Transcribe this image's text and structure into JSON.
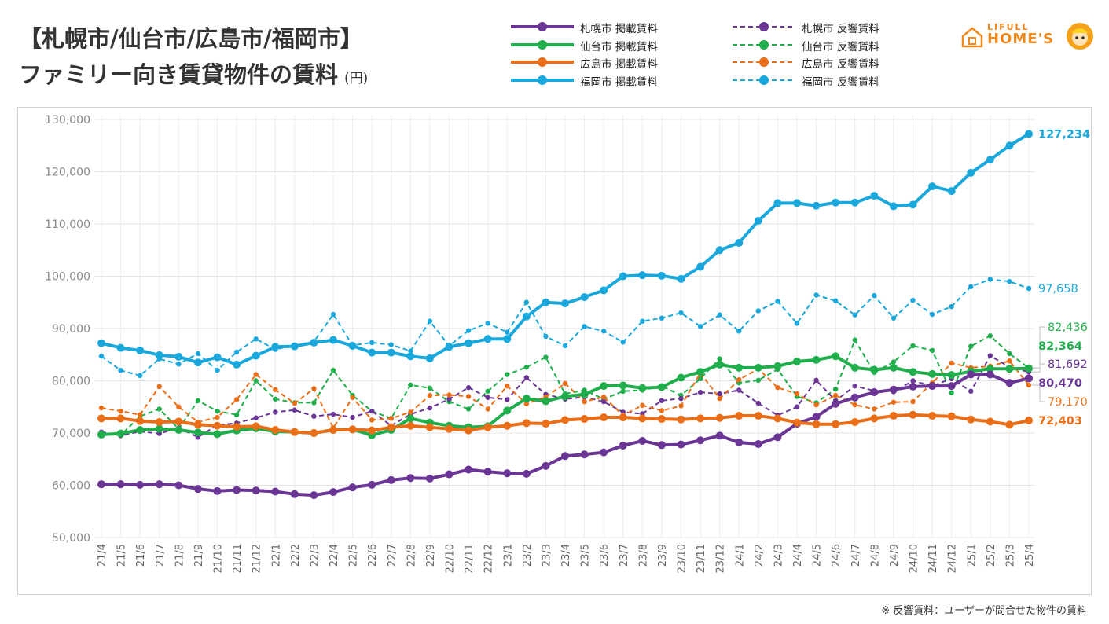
{
  "header": {
    "title_line1": "【札幌市/仙台市/広島市/福岡市】",
    "title_line2": "ファミリー向き賃貸物件の賃料",
    "unit": "(円)"
  },
  "logo": {
    "line1": "LIFULL",
    "line2": "HOME'S"
  },
  "footnote": "※ 反響賃料：ユーザーが問合せた物件の賃料",
  "chart_data": {
    "type": "line",
    "title": "【札幌市/仙台市/広島市/福岡市】ファミリー向き賃貸物件の賃料",
    "ylabel": "(円)",
    "ylim": [
      50000,
      130000
    ],
    "yticks": [
      50000,
      60000,
      70000,
      80000,
      90000,
      100000,
      110000,
      120000,
      130000
    ],
    "ytick_labels": [
      "50,000",
      "60,000",
      "70,000",
      "80,000",
      "90,000",
      "100,000",
      "110,000",
      "120,000",
      "130,000"
    ],
    "grid": true,
    "legend_position": "top",
    "x": [
      "21/4",
      "21/5",
      "21/6",
      "21/7",
      "21/8",
      "21/9",
      "21/10",
      "21/11",
      "21/12",
      "22/1",
      "22/2",
      "22/3",
      "22/4",
      "22/5",
      "22/6",
      "22/7",
      "22/8",
      "22/9",
      "22/10",
      "22/11",
      "22/12",
      "23/1",
      "23/2",
      "23/3",
      "23/4",
      "23/5",
      "23/6",
      "23/7",
      "23/8",
      "23/9",
      "23/10",
      "23/11",
      "23/12",
      "24/1",
      "24/2",
      "24/3",
      "24/4",
      "24/5",
      "24/6",
      "24/7",
      "24/8",
      "24/9",
      "24/10",
      "24/11",
      "24/12",
      "25/1",
      "25/2",
      "25/3",
      "25/4"
    ],
    "series": [
      {
        "name": "福岡市 反響賃料",
        "color": "#1aa8dc",
        "style": "dashed",
        "values": [
          84700,
          82000,
          81000,
          84200,
          83200,
          85200,
          82000,
          85500,
          88000,
          86000,
          86800,
          87500,
          92700,
          86800,
          87300,
          86900,
          85700,
          91400,
          86700,
          89600,
          91000,
          89300,
          95000,
          88500,
          86700,
          90400,
          89500,
          87400,
          91400,
          92000,
          93000,
          90400,
          92600,
          89500,
          93400,
          95200,
          91000,
          96400,
          95300,
          92600,
          96300,
          92000,
          95400,
          92700,
          94200,
          98000,
          99400,
          99000,
          97658
        ],
        "end_label": "97,658"
      },
      {
        "name": "仙台市 反響賃料",
        "color": "#1fae4b",
        "style": "dashed",
        "values": [
          69800,
          69600,
          73200,
          74600,
          70800,
          76200,
          74200,
          73500,
          80000,
          76500,
          75800,
          75800,
          82000,
          77200,
          74200,
          72800,
          79200,
          78600,
          76000,
          74600,
          78000,
          81200,
          82600,
          84500,
          77500,
          78200,
          76500,
          78000,
          78200,
          79000,
          77200,
          80400,
          84200,
          79600,
          80100,
          82200,
          77000,
          75800,
          78400,
          87800,
          81600,
          83600,
          86700,
          85800,
          77700,
          86600,
          88600,
          85200,
          82436
        ],
        "end_label": "82,436"
      },
      {
        "name": "札幌市 反響賃料",
        "color": "#6a3595",
        "style": "dashed",
        "values": [
          70200,
          69500,
          70300,
          69900,
          71000,
          69200,
          71500,
          71900,
          72900,
          74000,
          74400,
          73200,
          73600,
          73000,
          74200,
          71400,
          73600,
          74800,
          76500,
          78700,
          76800,
          76400,
          80600,
          77400,
          76500,
          76900,
          76000,
          74000,
          73700,
          76200,
          76600,
          77800,
          77500,
          78200,
          75700,
          73400,
          75000,
          80100,
          76200,
          79000,
          78100,
          77900,
          80000,
          79000,
          80400,
          78000,
          84800,
          82600,
          81692
        ],
        "end_label": "81,692"
      },
      {
        "name": "広島市 反響賃料",
        "color": "#ea6e17",
        "style": "dashed",
        "values": [
          74800,
          74200,
          73500,
          78900,
          75000,
          72100,
          73000,
          76400,
          81200,
          78300,
          75700,
          78500,
          71000,
          76800,
          72500,
          72800,
          74000,
          77200,
          77300,
          77000,
          74600,
          79000,
          75600,
          76900,
          79500,
          76000,
          76900,
          73400,
          75300,
          74300,
          75200,
          81500,
          76600,
          80200,
          82300,
          78700,
          77500,
          75400,
          77200,
          75400,
          74600,
          75900,
          76000,
          79600,
          83400,
          82500,
          82800,
          83800,
          79170
        ],
        "end_label": "79,170"
      },
      {
        "name": "福岡市 掲載賃料",
        "color": "#1aa8dc",
        "style": "solid",
        "values": [
          87200,
          86300,
          85800,
          84900,
          84600,
          83500,
          84500,
          83100,
          84800,
          86500,
          86600,
          87300,
          87800,
          86700,
          85400,
          85400,
          84700,
          84300,
          86500,
          87200,
          88000,
          88000,
          92300,
          95000,
          94800,
          96000,
          97300,
          100000,
          100200,
          100100,
          99500,
          101800,
          105000,
          106400,
          110600,
          114000,
          114000,
          113500,
          114100,
          114100,
          115400,
          113400,
          113700,
          117200,
          116300,
          119800,
          122300,
          125000,
          127234
        ],
        "end_label": "127,234"
      },
      {
        "name": "仙台市 掲載賃料",
        "color": "#1fae4b",
        "style": "solid",
        "values": [
          69700,
          69900,
          70600,
          70800,
          70600,
          70100,
          69800,
          70500,
          70900,
          70300,
          70200,
          70000,
          70600,
          70700,
          69600,
          70600,
          72800,
          72000,
          71400,
          71100,
          71300,
          74300,
          76600,
          76100,
          77000,
          77400,
          79000,
          79100,
          78600,
          78800,
          80600,
          81700,
          83100,
          82500,
          82500,
          82800,
          83700,
          84000,
          84700,
          82500,
          82100,
          82500,
          81700,
          81300,
          81100,
          81800,
          82300,
          82300,
          82364
        ],
        "end_label": "82,364"
      },
      {
        "name": "札幌市 掲載賃料",
        "color": "#6a3595",
        "style": "solid",
        "values": [
          60200,
          60200,
          60100,
          60200,
          60000,
          59300,
          58900,
          59100,
          59000,
          58800,
          58300,
          58100,
          58700,
          59600,
          60100,
          61000,
          61400,
          61300,
          62100,
          63000,
          62600,
          62300,
          62200,
          63700,
          65600,
          65900,
          66300,
          67600,
          68500,
          67700,
          67800,
          68600,
          69500,
          68200,
          67900,
          69200,
          71800,
          73100,
          75600,
          76800,
          77800,
          78300,
          78900,
          79000,
          79000,
          81200,
          81200,
          79600,
          80470
        ],
        "end_label": "80,470"
      },
      {
        "name": "広島市 掲載賃料",
        "color": "#ea6e17",
        "style": "solid",
        "values": [
          72800,
          72800,
          72300,
          72100,
          72200,
          71600,
          71400,
          71200,
          71300,
          70600,
          70200,
          70000,
          70600,
          70700,
          70500,
          71100,
          71400,
          71100,
          70800,
          70500,
          71100,
          71400,
          71900,
          71800,
          72500,
          72700,
          73000,
          73000,
          72800,
          72700,
          72600,
          72800,
          72900,
          73300,
          73300,
          72800,
          72000,
          71700,
          71700,
          72100,
          72800,
          73300,
          73500,
          73300,
          73200,
          72600,
          72200,
          71600,
          72403
        ],
        "end_label": "72,403"
      }
    ]
  }
}
